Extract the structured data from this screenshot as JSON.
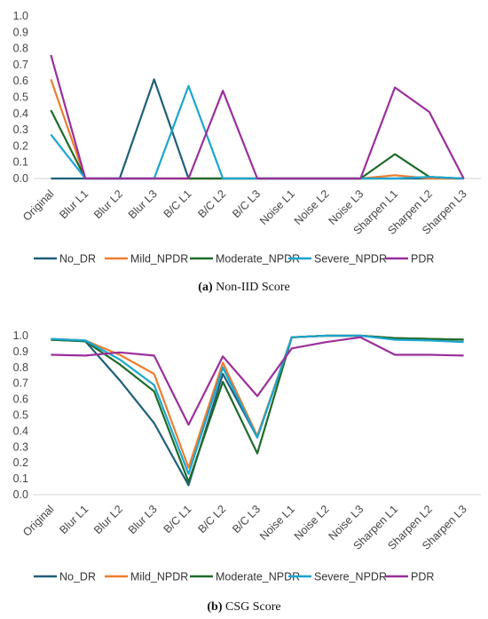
{
  "chart_data": [
    {
      "type": "line",
      "categories": [
        "Original",
        "Blur L1",
        "Blur L2",
        "Blur L3",
        "B/C L1",
        "B/C L2",
        "B/C L3",
        "Noise L1",
        "Noise L2",
        "Noise L3",
        "Sharpen L1",
        "Sharpen L2",
        "Sharpen L3"
      ],
      "series": [
        {
          "name": "No_DR",
          "color": "#1f5f7a",
          "values": [
            0.0,
            0.0,
            0.0,
            0.61,
            0.0,
            0.0,
            0.0,
            0.0,
            0.0,
            0.0,
            0.0,
            0.0,
            0.0
          ]
        },
        {
          "name": "Mild_NPDR",
          "color": "#ed7d31",
          "values": [
            0.61,
            0.0,
            0.0,
            0.0,
            0.0,
            0.0,
            0.0,
            0.0,
            0.0,
            0.0,
            0.02,
            0.0,
            0.0
          ]
        },
        {
          "name": "Moderate_NPDR",
          "color": "#1e6b2a",
          "values": [
            0.42,
            0.0,
            0.0,
            0.0,
            0.0,
            0.0,
            0.0,
            0.0,
            0.0,
            0.0,
            0.15,
            0.01,
            0.0
          ]
        },
        {
          "name": "Severe_NPDR",
          "color": "#1ba5cf",
          "values": [
            0.27,
            0.0,
            0.0,
            0.0,
            0.57,
            0.0,
            0.0,
            0.0,
            0.0,
            0.0,
            0.0,
            0.01,
            0.0
          ]
        },
        {
          "name": "PDR",
          "color": "#9b2f9b",
          "values": [
            0.76,
            0.0,
            0.0,
            0.0,
            0.0,
            0.54,
            0.0,
            0.0,
            0.0,
            0.0,
            0.56,
            0.41,
            0.0
          ]
        }
      ],
      "ylim": [
        0,
        1.0
      ],
      "yticks": [
        "0.0",
        "0.1",
        "0.2",
        "0.3",
        "0.4",
        "0.5",
        "0.6",
        "0.7",
        "0.8",
        "0.9",
        "1.0"
      ],
      "legend_position": "bottom",
      "caption_label": "(a)",
      "caption_text": "Non-IID Score"
    },
    {
      "type": "line",
      "categories": [
        "Original",
        "Blur L1",
        "Blur L2",
        "Blur L3",
        "B/C L1",
        "B/C L2",
        "B/C L3",
        "Noise L1",
        "Noise L2",
        "Noise L3",
        "Sharpen L1",
        "Sharpen L2",
        "Sharpen L3"
      ],
      "series": [
        {
          "name": "No_DR",
          "color": "#1f5f7a",
          "values": [
            0.975,
            0.965,
            0.72,
            0.45,
            0.06,
            0.76,
            0.36,
            0.99,
            1.0,
            1.0,
            0.985,
            0.98,
            0.975
          ]
        },
        {
          "name": "Mild_NPDR",
          "color": "#ed7d31",
          "values": [
            0.98,
            0.97,
            0.88,
            0.76,
            0.17,
            0.83,
            0.37,
            0.99,
            1.0,
            1.0,
            0.985,
            0.98,
            0.975
          ]
        },
        {
          "name": "Moderate_NPDR",
          "color": "#1e6b2a",
          "values": [
            0.975,
            0.965,
            0.82,
            0.65,
            0.08,
            0.71,
            0.26,
            0.99,
            1.0,
            1.0,
            0.985,
            0.98,
            0.975
          ]
        },
        {
          "name": "Severe_NPDR",
          "color": "#1ba5cf",
          "values": [
            0.98,
            0.97,
            0.85,
            0.69,
            0.13,
            0.8,
            0.36,
            0.99,
            1.0,
            1.0,
            0.975,
            0.97,
            0.96
          ]
        },
        {
          "name": "PDR",
          "color": "#9b2f9b",
          "values": [
            0.88,
            0.875,
            0.895,
            0.875,
            0.44,
            0.87,
            0.62,
            0.92,
            0.96,
            0.99,
            0.88,
            0.88,
            0.875
          ]
        }
      ],
      "ylim": [
        0,
        1.0
      ],
      "yticks": [
        "0.0",
        "0.1",
        "0.2",
        "0.3",
        "0.4",
        "0.5",
        "0.6",
        "0.7",
        "0.8",
        "0.9",
        "1.0"
      ],
      "legend_position": "bottom",
      "caption_label": "(b)",
      "caption_text": "CSG Score"
    }
  ]
}
